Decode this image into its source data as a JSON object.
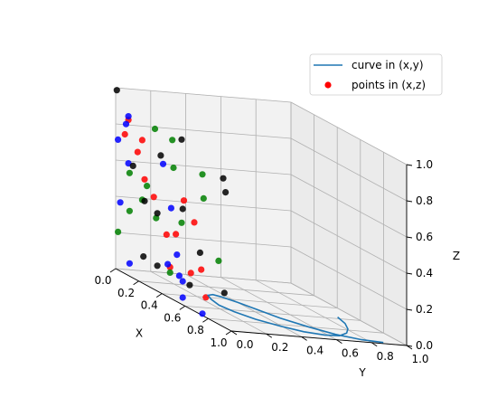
{
  "chart_data": {
    "type": "scatter3d",
    "title": "",
    "axes": {
      "x": {
        "label": "X",
        "lim": [
          0,
          1
        ],
        "ticks": [
          0.0,
          0.2,
          0.4,
          0.6,
          0.8,
          1.0
        ],
        "tick_labels": [
          "0.0",
          "0.2",
          "0.4",
          "0.6",
          "0.8",
          "1.0"
        ]
      },
      "y": {
        "label": "Y",
        "lim": [
          0,
          1
        ],
        "ticks": [
          0.0,
          0.2,
          0.4,
          0.6,
          0.8,
          1.0
        ],
        "tick_labels": [
          "0.0",
          "0.2",
          "0.4",
          "0.6",
          "0.8",
          "1.0"
        ]
      },
      "z": {
        "label": "Z",
        "lim": [
          0,
          1
        ],
        "ticks": [
          0.0,
          0.2,
          0.4,
          0.6,
          0.8,
          1.0
        ],
        "tick_labels": [
          "0.0",
          "0.2",
          "0.4",
          "0.6",
          "0.8",
          "1.0"
        ]
      }
    },
    "grid": true,
    "legend": {
      "placement": "upper-right",
      "entries": [
        {
          "label": "curve in (x,y)",
          "kind": "line",
          "color": "#1f77b4"
        },
        {
          "label": "points in (x,z)",
          "kind": "marker",
          "color": "#ff0000"
        }
      ]
    },
    "curve": {
      "label": "curve in (x,y)",
      "color": "#1f77b4",
      "plane": "z = 0",
      "x": [
        0.98,
        0.96,
        0.9,
        0.8,
        0.68,
        0.55,
        0.45,
        0.37,
        0.34,
        0.36,
        0.43,
        0.53,
        0.63,
        0.74,
        0.83,
        0.9,
        0.93,
        0.92,
        0.86,
        0.78,
        0.68,
        0.57
      ],
      "y": [
        0.88,
        0.77,
        0.66,
        0.57,
        0.49,
        0.44,
        0.4,
        0.36,
        0.33,
        0.29,
        0.26,
        0.24,
        0.26,
        0.31,
        0.39,
        0.48,
        0.58,
        0.67,
        0.75,
        0.81,
        0.86,
        0.89
      ]
    },
    "points": {
      "label": "points in (x,z)",
      "plane": "y = 0",
      "series": [
        {
          "color": "#ff0000",
          "x": [
            0.23,
            0.11,
            0.08,
            0.19,
            0.25,
            0.33,
            0.59,
            0.68,
            0.52,
            0.44,
            0.74,
            0.65,
            0.78,
            0.47
          ],
          "z": [
            0.79,
            0.86,
            0.77,
            0.71,
            0.58,
            0.51,
            0.58,
            0.49,
            0.37,
            0.34,
            0.25,
            0.2,
            0.11,
            0.17
          ]
        },
        {
          "color": "#008000",
          "x": [
            0.34,
            0.49,
            0.5,
            0.76,
            0.75,
            0.27,
            0.12,
            0.23,
            0.35,
            0.12,
            0.57,
            0.89,
            0.47,
            0.02
          ],
          "z": [
            0.89,
            0.88,
            0.73,
            0.65,
            0.78,
            0.55,
            0.57,
            0.46,
            0.4,
            0.36,
            0.45,
            0.35,
            0.14,
            0.21
          ]
        },
        {
          "color": "#0000ff",
          "x": [
            0.11,
            0.09,
            0.02,
            0.41,
            0.11,
            0.04,
            0.48,
            0.53,
            0.45,
            0.58,
            0.58,
            0.55,
            0.75,
            0.12
          ],
          "z": [
            0.88,
            0.83,
            0.72,
            0.72,
            0.62,
            0.38,
            0.5,
            0.26,
            0.18,
            0.04,
            0.13,
            0.15,
            0.01,
            0.07
          ]
        },
        {
          "color": "#000000",
          "x": [
            0.01,
            0.57,
            0.93,
            0.95,
            0.39,
            0.15,
            0.58,
            0.25,
            0.36,
            0.73,
            0.24,
            0.36,
            0.64,
            0.94
          ],
          "z": [
            0.99,
            0.91,
            0.82,
            0.75,
            0.76,
            0.62,
            0.53,
            0.46,
            0.43,
            0.34,
            0.15,
            0.14,
            0.13,
            0.19
          ]
        }
      ]
    }
  }
}
